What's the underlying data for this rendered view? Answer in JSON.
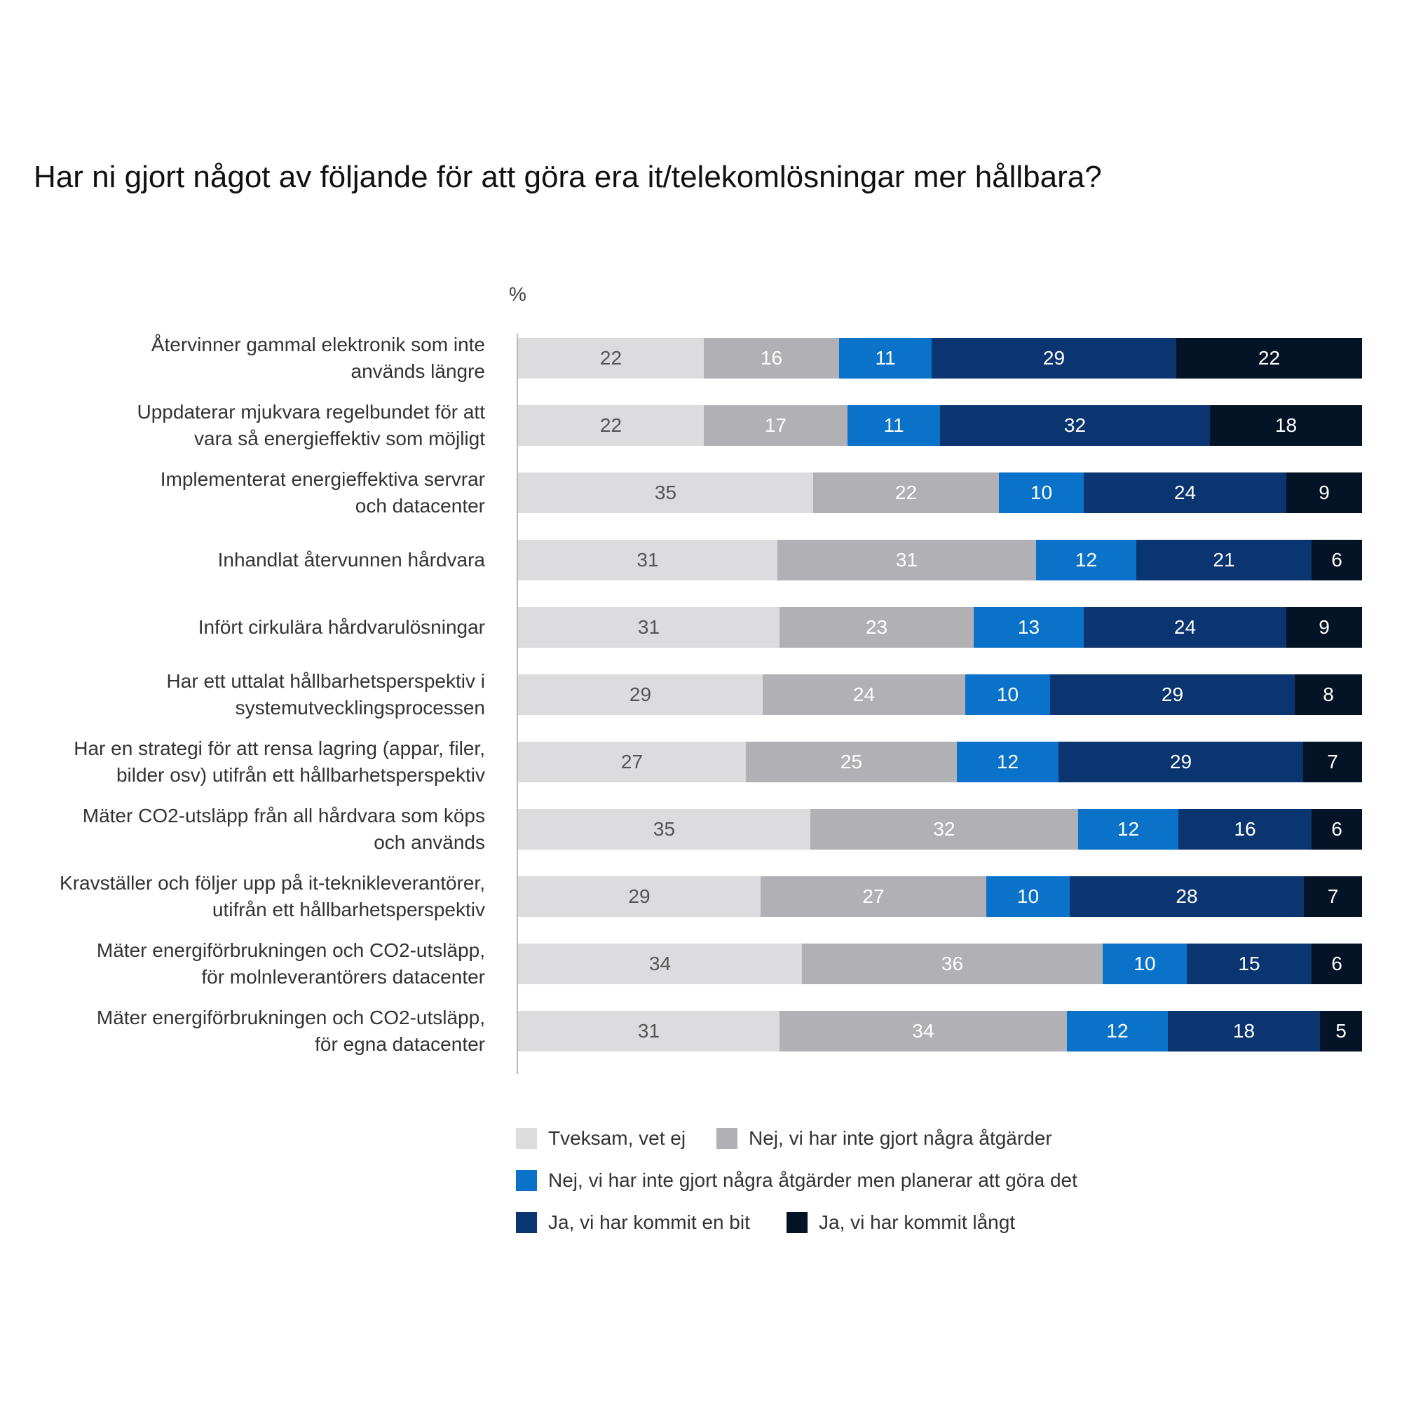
{
  "chart_data": {
    "type": "bar",
    "orientation": "horizontal",
    "stacked": true,
    "title": "Har ni gjort något av följande för att göra era it/telekomlösningar mer hållbara?",
    "unit_label": "%",
    "xlim": [
      0,
      100
    ],
    "grid": false,
    "legend_position": "bottom",
    "categories": [
      [
        "Återvinner gammal elektronik som inte",
        "används längre"
      ],
      [
        "Uppdaterar mjukvara regelbundet för att",
        "vara så energieffektiv som möjligt"
      ],
      [
        "Implementerat energieffektiva servrar",
        "och datacenter"
      ],
      [
        "Inhandlat återvunnen hårdvara"
      ],
      [
        "Infört cirkulära hårdvarulösningar"
      ],
      [
        "Har ett uttalat hållbarhetsperspektiv i",
        "systemutvecklingsprocessen"
      ],
      [
        "Har en strategi för att rensa lagring (appar, filer,",
        "bilder osv) utifrån ett hållbarhetsperspektiv"
      ],
      [
        "Mäter CO2-utsläpp från all hårdvara som köps",
        "och används"
      ],
      [
        "Kravställer och följer upp på it-teknikleverantörer,",
        "utifrån ett hållbarhetsperspektiv"
      ],
      [
        "Mäter energiförbrukningen och CO2-utsläpp,",
        "för molnleverantörers datacenter"
      ],
      [
        "Mäter energiförbrukningen och CO2-utsläpp,",
        "för egna datacenter"
      ]
    ],
    "series": [
      {
        "name": "Tveksam, vet ej",
        "color": "#dcdcde",
        "text_color": "#555555",
        "values": [
          22,
          22,
          35,
          31,
          31,
          29,
          27,
          35,
          29,
          34,
          31
        ]
      },
      {
        "name": "Nej, vi har inte gjort några åtgärder",
        "color": "#b1b1b5",
        "text_color": "#ffffff",
        "values": [
          16,
          17,
          22,
          31,
          23,
          24,
          25,
          32,
          27,
          36,
          34
        ]
      },
      {
        "name": "Nej, vi har inte gjort några åtgärder men planerar att göra det",
        "color": "#0a73c9",
        "text_color": "#ffffff",
        "values": [
          11,
          11,
          10,
          12,
          13,
          10,
          12,
          12,
          10,
          10,
          12
        ]
      },
      {
        "name": "Ja, vi har kommit en bit",
        "color": "#0b3570",
        "text_color": "#ffffff",
        "values": [
          29,
          32,
          24,
          21,
          24,
          29,
          29,
          16,
          28,
          15,
          18
        ]
      },
      {
        "name": "Ja, vi har kommit långt",
        "color": "#041426",
        "text_color": "#ffffff",
        "values": [
          22,
          18,
          9,
          6,
          9,
          8,
          7,
          6,
          7,
          6,
          5
        ]
      }
    ]
  }
}
